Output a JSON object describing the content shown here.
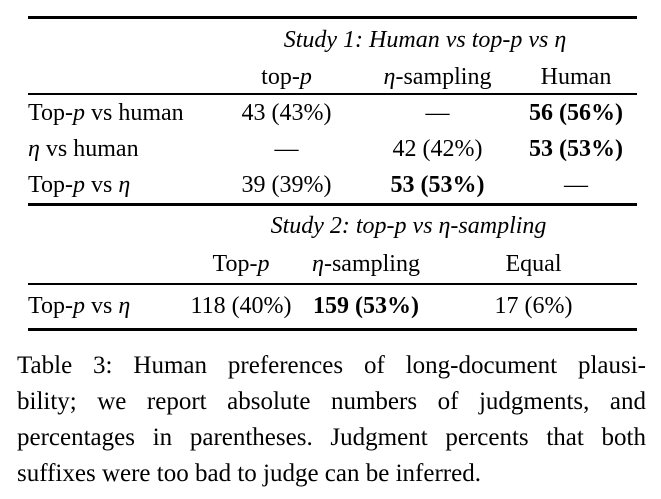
{
  "page": {
    "background": "#ffffff",
    "text_color": "#000000"
  },
  "table": {
    "study1": {
      "heading": "Study 1: Human vs top-p vs η",
      "columns": [
        {
          "segments": [
            {
              "t": "top-"
            },
            {
              "t": "p",
              "i": true
            }
          ]
        },
        {
          "segments": [
            {
              "t": "η",
              "i": true
            },
            {
              "t": "-sampling"
            }
          ]
        },
        {
          "segments": [
            {
              "t": "Human"
            }
          ]
        }
      ],
      "rows": [
        {
          "label": {
            "segments": [
              {
                "t": "Top-"
              },
              {
                "t": "p",
                "i": true
              },
              {
                "t": " vs human"
              }
            ]
          },
          "cells": [
            {
              "t": "43 (43%)",
              "bold": false
            },
            {
              "t": "—",
              "bold": false
            },
            {
              "t": "56 (56%)",
              "bold": true
            }
          ]
        },
        {
          "label": {
            "segments": [
              {
                "t": "η",
                "i": true
              },
              {
                "t": " vs human"
              }
            ]
          },
          "cells": [
            {
              "t": "—",
              "bold": false
            },
            {
              "t": "42 (42%)",
              "bold": false
            },
            {
              "t": "53 (53%)",
              "bold": true
            }
          ]
        },
        {
          "label": {
            "segments": [
              {
                "t": "Top-"
              },
              {
                "t": "p",
                "i": true
              },
              {
                "t": " vs "
              },
              {
                "t": "η",
                "i": true
              }
            ]
          },
          "cells": [
            {
              "t": "39 (39%)",
              "bold": false
            },
            {
              "t": "53 (53%)",
              "bold": true
            },
            {
              "t": "—",
              "bold": false
            }
          ]
        }
      ]
    },
    "study2": {
      "heading": "Study 2: top-p vs η-sampling",
      "columns": [
        {
          "segments": [
            {
              "t": "Top-"
            },
            {
              "t": "p",
              "i": true
            }
          ]
        },
        {
          "segments": [
            {
              "t": "η",
              "i": true
            },
            {
              "t": "-sampling"
            }
          ]
        },
        {
          "segments": [
            {
              "t": "Equal"
            }
          ]
        }
      ],
      "rows": [
        {
          "label": {
            "segments": [
              {
                "t": "Top-"
              },
              {
                "t": "p",
                "i": true
              },
              {
                "t": " vs "
              },
              {
                "t": "η",
                "i": true
              }
            ]
          },
          "cells": [
            {
              "t": "118 (40%)",
              "bold": false
            },
            {
              "t": "159 (53%)",
              "bold": true
            },
            {
              "t": "17 (6%)",
              "bold": false
            }
          ]
        }
      ]
    }
  },
  "caption": {
    "lines": [
      "Table 3: Human preferences of long-document plausi-",
      "bility; we report absolute numbers of judgments, and",
      "percentages in parentheses. Judgment percents that both",
      "suffixes were too bad to judge can be inferred."
    ]
  }
}
